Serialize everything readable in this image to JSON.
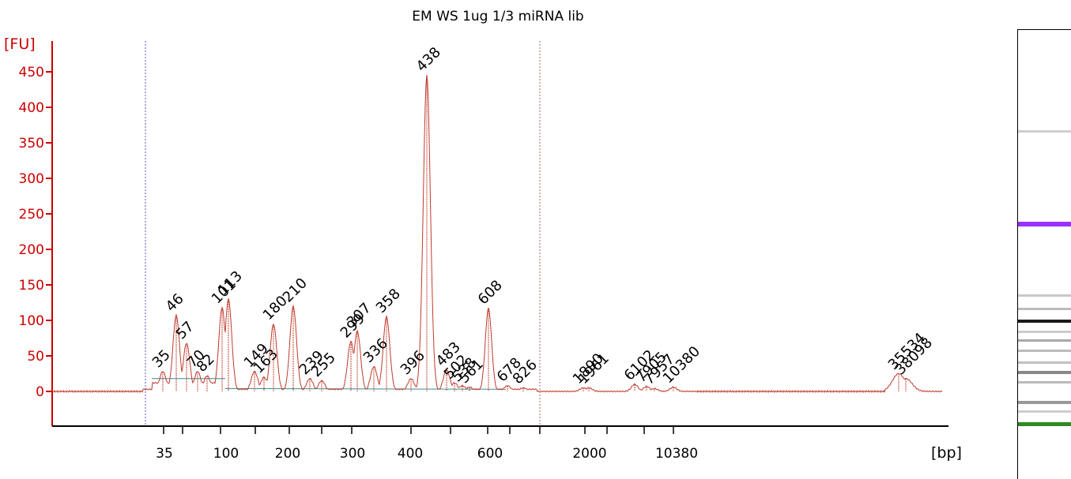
{
  "chart_data": {
    "type": "line",
    "title": "EM WS 1ug 1/3 miRNA lib",
    "ylabel": "[FU]",
    "xlabel": "[bp]",
    "ylim": [
      -50,
      480
    ],
    "yticks": [
      0,
      50,
      100,
      150,
      200,
      250,
      300,
      350,
      400,
      450
    ],
    "xtick_labels": [
      "35",
      "100",
      "200",
      "300",
      "400",
      "600",
      "2000",
      "10380"
    ],
    "colors": {
      "trace": "#c0392b",
      "axis": "#cc0000",
      "lower_marker": "#2e8b22",
      "upper_marker": "#9b30ff",
      "baseline": "#3c8c8c"
    },
    "peaks": [
      {
        "label": "35",
        "value": 28,
        "color": "#2e8b22"
      },
      {
        "label": "46",
        "value": 107
      },
      {
        "label": "57",
        "value": 68
      },
      {
        "label": "70",
        "value": 28
      },
      {
        "label": "82",
        "value": 22
      },
      {
        "label": "101",
        "value": 118
      },
      {
        "label": "113",
        "value": 130
      },
      {
        "label": "149",
        "value": 28
      },
      {
        "label": "163",
        "value": 20
      },
      {
        "label": "180",
        "value": 95
      },
      {
        "label": "210",
        "value": 120
      },
      {
        "label": "239",
        "value": 18
      },
      {
        "label": "255",
        "value": 15
      },
      {
        "label": "299",
        "value": 70
      },
      {
        "label": "307",
        "value": 85
      },
      {
        "label": "336",
        "value": 35
      },
      {
        "label": "358",
        "value": 105
      },
      {
        "label": "396",
        "value": 18
      },
      {
        "label": "438",
        "value": 445
      },
      {
        "label": "483",
        "value": 30
      },
      {
        "label": "502",
        "value": 12
      },
      {
        "label": "538",
        "value": 8
      },
      {
        "label": "561",
        "value": 6
      },
      {
        "label": "608",
        "value": 117
      },
      {
        "label": "678",
        "value": 8
      },
      {
        "label": "826",
        "value": 5
      },
      {
        "label": "1890",
        "value": 5
      },
      {
        "label": "1961",
        "value": 5
      },
      {
        "label": "6102",
        "value": 10
      },
      {
        "label": "7905",
        "value": 7
      },
      {
        "label": "7957",
        "value": 4
      },
      {
        "label": "10380",
        "value": 6,
        "color": "#9b30ff"
      },
      {
        "label": "35534",
        "value": 25
      },
      {
        "label": "38098",
        "value": 18
      }
    ]
  }
}
